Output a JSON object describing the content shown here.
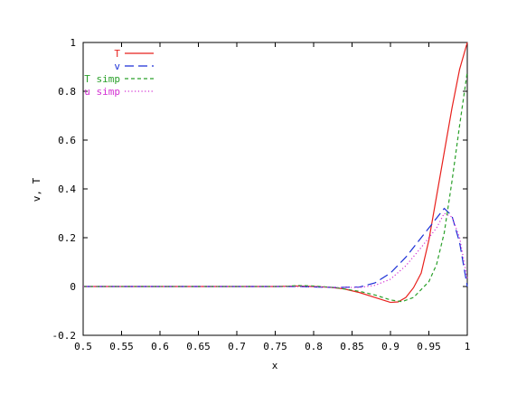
{
  "chart_data": {
    "type": "line",
    "title": "",
    "xlabel": "x",
    "ylabel": "v, T",
    "xlim": [
      0.5,
      1.0
    ],
    "ylim": [
      -0.2,
      1.0
    ],
    "grid": false,
    "legend_position": "top-left",
    "x_ticks": [
      "0.5",
      "0.55",
      "0.6",
      "0.65",
      "0.7",
      "0.75",
      "0.8",
      "0.85",
      "0.9",
      "0.95",
      "1"
    ],
    "x_tick_values": [
      0.5,
      0.55,
      0.6,
      0.65,
      0.7,
      0.75,
      0.8,
      0.85,
      0.9,
      0.95,
      1.0
    ],
    "y_ticks": [
      "-0.2",
      "0",
      "0.2",
      "0.4",
      "0.6",
      "0.8",
      "1"
    ],
    "y_tick_values": [
      -0.2,
      0,
      0.2,
      0.4,
      0.6,
      0.8,
      1.0
    ],
    "series": [
      {
        "name": "T",
        "color": "#e8201c",
        "dash": "solid",
        "points": [
          [
            0.5,
            0
          ],
          [
            0.75,
            0
          ],
          [
            0.78,
            0.002
          ],
          [
            0.8,
            0
          ],
          [
            0.82,
            -0.003
          ],
          [
            0.84,
            -0.01
          ],
          [
            0.86,
            -0.025
          ],
          [
            0.88,
            -0.045
          ],
          [
            0.9,
            -0.065
          ],
          [
            0.91,
            -0.063
          ],
          [
            0.92,
            -0.045
          ],
          [
            0.93,
            -0.005
          ],
          [
            0.94,
            0.055
          ],
          [
            0.95,
            0.19
          ],
          [
            0.96,
            0.37
          ],
          [
            0.97,
            0.55
          ],
          [
            0.98,
            0.73
          ],
          [
            0.99,
            0.89
          ],
          [
            1.0,
            1.0
          ]
        ]
      },
      {
        "name": "v",
        "color": "#1a2fd6",
        "dash": "long-dash",
        "points": [
          [
            0.5,
            0
          ],
          [
            0.78,
            0
          ],
          [
            0.8,
            -0.002
          ],
          [
            0.83,
            -0.004
          ],
          [
            0.86,
            -0.002
          ],
          [
            0.88,
            0.015
          ],
          [
            0.9,
            0.055
          ],
          [
            0.92,
            0.12
          ],
          [
            0.94,
            0.2
          ],
          [
            0.96,
            0.28
          ],
          [
            0.97,
            0.32
          ],
          [
            0.98,
            0.29
          ],
          [
            0.99,
            0.18
          ],
          [
            1.0,
            0
          ]
        ]
      },
      {
        "name": "T simp",
        "color": "#2aa02a",
        "dash": "short-dash",
        "points": [
          [
            0.5,
            0
          ],
          [
            0.76,
            0
          ],
          [
            0.78,
            0.004
          ],
          [
            0.8,
            0.002
          ],
          [
            0.83,
            -0.005
          ],
          [
            0.86,
            -0.02
          ],
          [
            0.88,
            -0.035
          ],
          [
            0.9,
            -0.055
          ],
          [
            0.915,
            -0.062
          ],
          [
            0.93,
            -0.045
          ],
          [
            0.95,
            0.02
          ],
          [
            0.96,
            0.09
          ],
          [
            0.97,
            0.22
          ],
          [
            0.98,
            0.43
          ],
          [
            0.99,
            0.66
          ],
          [
            1.0,
            0.88
          ]
        ]
      },
      {
        "name": "u simp",
        "color": "#d22fd2",
        "dash": "dotted",
        "points": [
          [
            0.5,
            0
          ],
          [
            0.78,
            0
          ],
          [
            0.8,
            -0.001
          ],
          [
            0.83,
            -0.004
          ],
          [
            0.86,
            -0.004
          ],
          [
            0.88,
            0.005
          ],
          [
            0.9,
            0.03
          ],
          [
            0.92,
            0.085
          ],
          [
            0.94,
            0.16
          ],
          [
            0.96,
            0.24
          ],
          [
            0.97,
            0.3
          ],
          [
            0.98,
            0.285
          ],
          [
            0.99,
            0.2
          ],
          [
            1.0,
            0.03
          ]
        ]
      }
    ]
  }
}
